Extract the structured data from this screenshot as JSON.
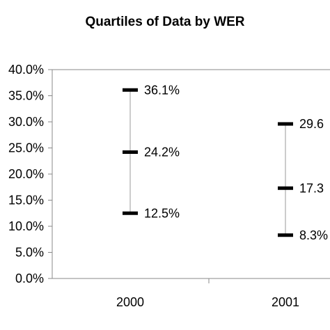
{
  "chart_data": {
    "type": "range",
    "title": "Quartiles of Data by WER",
    "xlabel": "",
    "ylabel": "",
    "ylim": [
      0,
      40
    ],
    "y_ticks": [
      "0.0%",
      "5.0%",
      "10.0%",
      "15.0%",
      "20.0%",
      "25.0%",
      "30.0%",
      "35.0%",
      "40.0%"
    ],
    "categories": [
      "2000",
      "2001"
    ],
    "quartiles": [
      {
        "category": "2000",
        "q1": 12.5,
        "median": 24.2,
        "q3": 36.1,
        "labels": {
          "q1": "12.5%",
          "median": "24.2%",
          "q3": "36.1%"
        }
      },
      {
        "category": "2001",
        "q1": 8.3,
        "median": 17.3,
        "q3": 29.6,
        "labels": {
          "q1": "8.3%",
          "median": "17.3",
          "q3": "29.6"
        }
      }
    ],
    "grid": false,
    "legend": "none"
  }
}
